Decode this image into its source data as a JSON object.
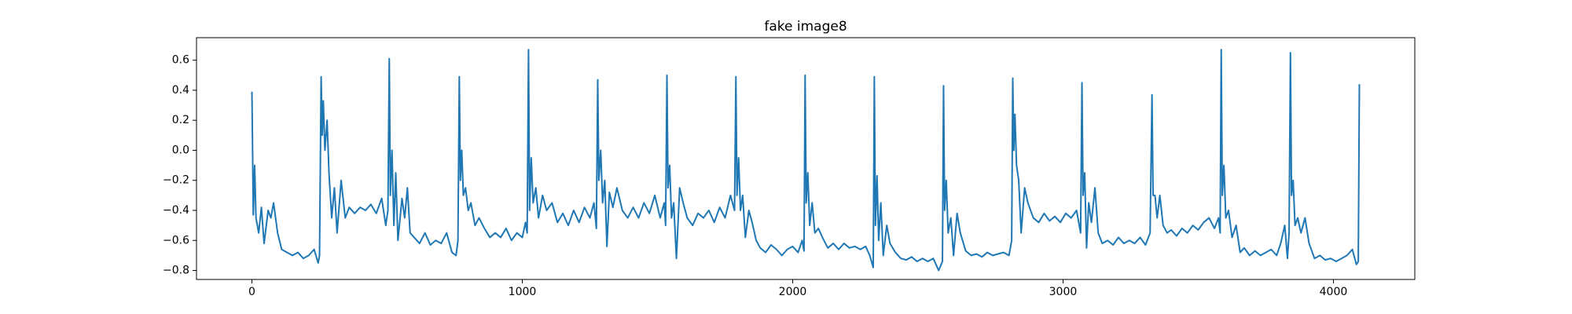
{
  "chart_data": {
    "type": "line",
    "title": "fake image8",
    "color": "#1f77b4",
    "x": [
      0,
      5,
      10,
      15,
      25,
      35,
      45,
      60,
      70,
      80,
      95,
      110,
      130,
      150,
      170,
      190,
      210,
      230,
      245,
      250,
      256,
      260,
      264,
      270,
      278,
      285,
      295,
      305,
      315,
      330,
      345,
      360,
      380,
      400,
      420,
      440,
      460,
      480,
      495,
      503,
      508,
      512,
      518,
      525,
      532,
      540,
      555,
      565,
      575,
      585,
      600,
      620,
      640,
      660,
      680,
      700,
      720,
      740,
      755,
      762,
      767,
      771,
      776,
      782,
      790,
      800,
      810,
      825,
      840,
      860,
      880,
      900,
      920,
      940,
      960,
      980,
      1000,
      1012,
      1018,
      1023,
      1027,
      1033,
      1040,
      1050,
      1060,
      1075,
      1090,
      1110,
      1130,
      1150,
      1170,
      1190,
      1210,
      1230,
      1250,
      1265,
      1274,
      1279,
      1283,
      1290,
      1297,
      1305,
      1313,
      1322,
      1335,
      1350,
      1370,
      1390,
      1410,
      1430,
      1450,
      1470,
      1490,
      1510,
      1525,
      1530,
      1535,
      1539,
      1545,
      1552,
      1560,
      1570,
      1582,
      1595,
      1610,
      1630,
      1650,
      1670,
      1690,
      1710,
      1730,
      1750,
      1770,
      1785,
      1790,
      1794,
      1800,
      1807,
      1815,
      1825,
      1838,
      1850,
      1865,
      1880,
      1900,
      1920,
      1940,
      1960,
      1980,
      2000,
      2020,
      2035,
      2042,
      2046,
      2050,
      2056,
      2063,
      2072,
      2082,
      2095,
      2110,
      2130,
      2150,
      2170,
      2190,
      2210,
      2230,
      2250,
      2270,
      2285,
      2298,
      2302,
      2306,
      2312,
      2318,
      2326,
      2335,
      2348,
      2360,
      2380,
      2400,
      2420,
      2440,
      2460,
      2480,
      2500,
      2520,
      2540,
      2554,
      2558,
      2562,
      2568,
      2575,
      2585,
      2595,
      2608,
      2620,
      2640,
      2660,
      2680,
      2700,
      2720,
      2740,
      2760,
      2780,
      2800,
      2810,
      2814,
      2818,
      2822,
      2828,
      2836,
      2845,
      2858,
      2870,
      2890,
      2910,
      2930,
      2950,
      2970,
      2990,
      3010,
      3030,
      3050,
      3065,
      3070,
      3074,
      3080,
      3087,
      3095,
      3105,
      3118,
      3130,
      3145,
      3165,
      3185,
      3205,
      3225,
      3245,
      3265,
      3285,
      3305,
      3322,
      3329,
      3333,
      3340,
      3348,
      3358,
      3370,
      3385,
      3400,
      3420,
      3440,
      3460,
      3480,
      3500,
      3520,
      3540,
      3560,
      3575,
      3581,
      3585,
      3589,
      3595,
      3602,
      3612,
      3625,
      3640,
      3655,
      3670,
      3690,
      3710,
      3730,
      3750,
      3770,
      3790,
      3805,
      3820,
      3830,
      3836,
      3841,
      3845,
      3851,
      3858,
      3868,
      3880,
      3895,
      3910,
      3930,
      3950,
      3970,
      3990,
      4010,
      4030,
      4050,
      4070,
      4085,
      4092,
      4096
    ],
    "values": [
      0.39,
      -0.43,
      -0.1,
      -0.45,
      -0.55,
      -0.38,
      -0.62,
      -0.4,
      -0.45,
      -0.35,
      -0.55,
      -0.66,
      -0.68,
      -0.7,
      -0.68,
      -0.72,
      -0.7,
      -0.66,
      -0.75,
      -0.7,
      0.49,
      0.1,
      0.33,
      0,
      0.2,
      -0.15,
      -0.45,
      -0.25,
      -0.55,
      -0.2,
      -0.45,
      -0.38,
      -0.42,
      -0.38,
      -0.4,
      -0.36,
      -0.42,
      -0.32,
      -0.5,
      -0.4,
      0.61,
      -0.3,
      0,
      -0.5,
      -0.15,
      -0.6,
      -0.32,
      -0.45,
      -0.25,
      -0.55,
      -0.58,
      -0.62,
      -0.55,
      -0.63,
      -0.6,
      -0.62,
      -0.55,
      -0.68,
      -0.7,
      -0.6,
      0.49,
      -0.2,
      0,
      -0.3,
      -0.25,
      -0.4,
      -0.35,
      -0.5,
      -0.45,
      -0.52,
      -0.58,
      -0.55,
      -0.58,
      -0.52,
      -0.6,
      -0.55,
      -0.58,
      -0.48,
      -0.55,
      0.67,
      -0.4,
      -0.05,
      -0.35,
      -0.25,
      -0.45,
      -0.3,
      -0.4,
      -0.35,
      -0.48,
      -0.42,
      -0.5,
      -0.4,
      -0.48,
      -0.38,
      -0.45,
      -0.35,
      -0.52,
      0.47,
      -0.2,
      0,
      -0.35,
      -0.2,
      -0.64,
      -0.28,
      -0.38,
      -0.25,
      -0.4,
      -0.45,
      -0.38,
      -0.45,
      -0.35,
      -0.42,
      -0.3,
      -0.45,
      -0.35,
      -0.5,
      0.5,
      -0.25,
      -0.1,
      -0.45,
      -0.35,
      -0.72,
      -0.25,
      -0.35,
      -0.45,
      -0.5,
      -0.42,
      -0.45,
      -0.4,
      -0.48,
      -0.38,
      -0.45,
      -0.3,
      -0.4,
      0.49,
      -0.3,
      -0.05,
      -0.4,
      -0.3,
      -0.58,
      -0.4,
      -0.48,
      -0.6,
      -0.65,
      -0.68,
      -0.63,
      -0.66,
      -0.7,
      -0.66,
      -0.64,
      -0.68,
      -0.6,
      -0.67,
      0.5,
      -0.35,
      -0.15,
      -0.5,
      -0.35,
      -0.55,
      -0.52,
      -0.58,
      -0.65,
      -0.62,
      -0.66,
      -0.62,
      -0.65,
      -0.64,
      -0.66,
      -0.64,
      -0.7,
      -0.78,
      0.49,
      -0.5,
      -0.17,
      -0.6,
      -0.35,
      -0.7,
      -0.5,
      -0.62,
      -0.68,
      -0.72,
      -0.73,
      -0.71,
      -0.74,
      -0.72,
      -0.74,
      -0.72,
      -0.8,
      -0.74,
      0.43,
      -0.4,
      -0.2,
      -0.55,
      -0.45,
      -0.7,
      -0.42,
      -0.55,
      -0.67,
      -0.7,
      -0.69,
      -0.71,
      -0.68,
      -0.7,
      -0.69,
      -0.68,
      -0.7,
      -0.6,
      0.48,
      0,
      0.24,
      -0.1,
      -0.2,
      -0.55,
      -0.25,
      -0.35,
      -0.45,
      -0.48,
      -0.42,
      -0.47,
      -0.44,
      -0.48,
      -0.42,
      -0.45,
      -0.4,
      -0.55,
      0.45,
      -0.3,
      -0.15,
      -0.65,
      -0.35,
      -0.48,
      -0.25,
      -0.55,
      -0.62,
      -0.6,
      -0.63,
      -0.58,
      -0.62,
      -0.6,
      -0.62,
      -0.58,
      -0.63,
      -0.55,
      0.37,
      -0.3,
      -0.3,
      -0.45,
      -0.3,
      -0.5,
      -0.55,
      -0.53,
      -0.57,
      -0.52,
      -0.55,
      -0.5,
      -0.53,
      -0.48,
      -0.45,
      -0.52,
      -0.45,
      -0.55,
      0.67,
      -0.3,
      -0.1,
      -0.45,
      -0.4,
      -0.58,
      -0.5,
      -0.68,
      -0.65,
      -0.7,
      -0.67,
      -0.7,
      -0.68,
      -0.66,
      -0.7,
      -0.62,
      -0.5,
      -0.72,
      -0.55,
      0.65,
      -0.3,
      -0.2,
      -0.5,
      -0.45,
      -0.55,
      -0.45,
      -0.62,
      -0.72,
      -0.7,
      -0.73,
      -0.72,
      -0.74,
      -0.72,
      -0.7,
      -0.66,
      -0.76,
      -0.74,
      0.44
    ],
    "xlim": [
      -205,
      4301
    ],
    "ylim": [
      -0.86,
      0.75
    ],
    "xticks": [
      0,
      1000,
      2000,
      3000,
      4000
    ],
    "yticks": [
      0.6,
      0.4,
      0.2,
      {
        "value": 0,
        "label": "0.0"
      },
      {
        "value": -0.2,
        "label": "−0.2"
      },
      {
        "value": -0.4,
        "label": "−0.4"
      },
      {
        "value": -0.6,
        "label": "−0.6"
      },
      {
        "value": -0.8,
        "label": "−0.8"
      }
    ]
  }
}
